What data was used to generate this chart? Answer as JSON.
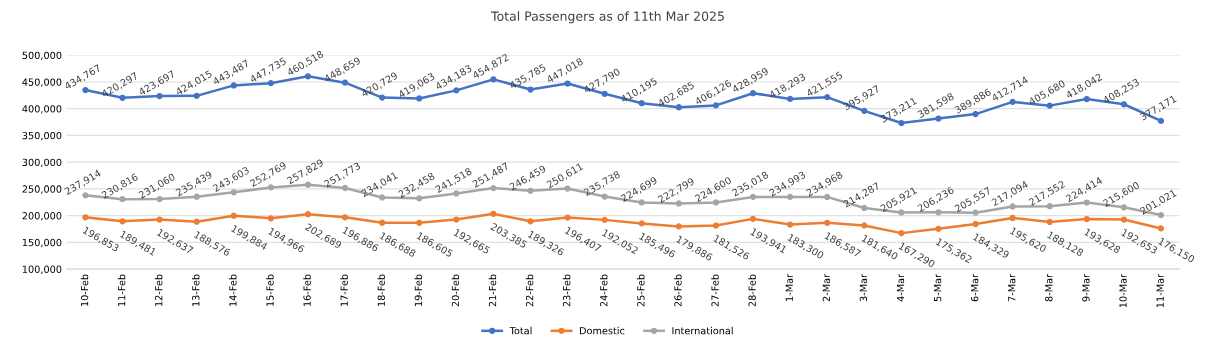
{
  "chart_data": {
    "type": "line",
    "title": "Total Passengers as of 11th Mar 2025",
    "categories": [
      "10-Feb",
      "11-Feb",
      "12-Feb",
      "13-Feb",
      "14-Feb",
      "15-Feb",
      "16-Feb",
      "17-Feb",
      "18-Feb",
      "19-Feb",
      "20-Feb",
      "21-Feb",
      "22-Feb",
      "23-Feb",
      "24-Feb",
      "25-Feb",
      "26-Feb",
      "27-Feb",
      "28-Feb",
      "1-Mar",
      "2-Mar",
      "3-Mar",
      "4-Mar",
      "5-Mar",
      "6-Mar",
      "7-Mar",
      "8-Mar",
      "9-Mar",
      "10-Mar",
      "11-Mar"
    ],
    "series": [
      {
        "name": "Total",
        "color": "#4472c4",
        "values": [
          434767,
          420297,
          423697,
          424015,
          443487,
          447735,
          460518,
          448659,
          420729,
          419063,
          434183,
          454872,
          435785,
          447018,
          427790,
          410195,
          402685,
          406126,
          428959,
          418293,
          421555,
          395927,
          373211,
          381598,
          389886,
          412714,
          405680,
          418042,
          408253,
          377171
        ],
        "value_labels": [
          "434,767",
          "420,297",
          "423,697",
          "424,015",
          "443,487",
          "447,735",
          "460,518",
          "448,659",
          "420,729",
          "419,063",
          "434,183",
          "454,872",
          "435,785",
          "447,018",
          "427,790",
          "410,195",
          "402,685",
          "406,126",
          "428,959",
          "418,293",
          "421,555",
          "395,927",
          "373,211",
          "381,598",
          "389,886",
          "412,714",
          "405,680",
          "418,042",
          "408,253",
          "377,171"
        ]
      },
      {
        "name": "Domestic",
        "color": "#ed7d31",
        "values": [
          196853,
          189481,
          192637,
          188576,
          199884,
          194966,
          202689,
          196886,
          186688,
          186605,
          192665,
          203385,
          189326,
          196407,
          192052,
          185496,
          179886,
          181526,
          193941,
          183300,
          186587,
          181640,
          167290,
          175362,
          184329,
          195620,
          188128,
          193628,
          192653,
          176150
        ],
        "value_labels": [
          "196,853",
          "189,481",
          "192,637",
          "188,576",
          "199,884",
          "194,966",
          "202,689",
          "196,886",
          "186,688",
          "186,605",
          "192,665",
          "203,385",
          "189,326",
          "196,407",
          "192,052",
          "185,496",
          "179,886",
          "181,526",
          "193,941",
          "183,300",
          "186,587",
          "181,640",
          "167,290",
          "175,362",
          "184,329",
          "195,620",
          "188,128",
          "193,628",
          "192,653",
          "176,150"
        ]
      },
      {
        "name": "International",
        "color": "#a5a5a5",
        "values": [
          237914,
          230816,
          231060,
          235439,
          243603,
          252769,
          257829,
          251773,
          234041,
          232458,
          241518,
          251487,
          246459,
          250611,
          235738,
          224699,
          222799,
          224600,
          235018,
          234993,
          234968,
          214287,
          205921,
          206236,
          205557,
          217094,
          217552,
          224414,
          215600,
          201021
        ],
        "value_labels": [
          "237,914",
          "230,816",
          "231,060",
          "235,439",
          "243,603",
          "252,769",
          "257,829",
          "251,773",
          "234,041",
          "232,458",
          "241,518",
          "251,487",
          "246,459",
          "250,611",
          "235,738",
          "224,699",
          "222,799",
          "224,600",
          "235,018",
          "234,993",
          "234,968",
          "214,287",
          "205,921",
          "206,236",
          "205,557",
          "217,094",
          "217,552",
          "224,414",
          "215,600",
          "201,021"
        ]
      }
    ],
    "ylim": [
      100000,
      500000
    ],
    "yticks": [
      {
        "value": 100000,
        "label": "100,000"
      },
      {
        "value": 150000,
        "label": "150,000"
      },
      {
        "value": 200000,
        "label": "200,000"
      },
      {
        "value": 250000,
        "label": "250,000"
      },
      {
        "value": 300000,
        "label": "300,000"
      },
      {
        "value": 350000,
        "label": "350,000"
      },
      {
        "value": 400000,
        "label": "400,000"
      },
      {
        "value": 450000,
        "label": "450,000"
      },
      {
        "value": 500000,
        "label": "500,000"
      }
    ],
    "grid": "y",
    "legend": "bottom",
    "marker": "circle",
    "line_style": "solid"
  }
}
